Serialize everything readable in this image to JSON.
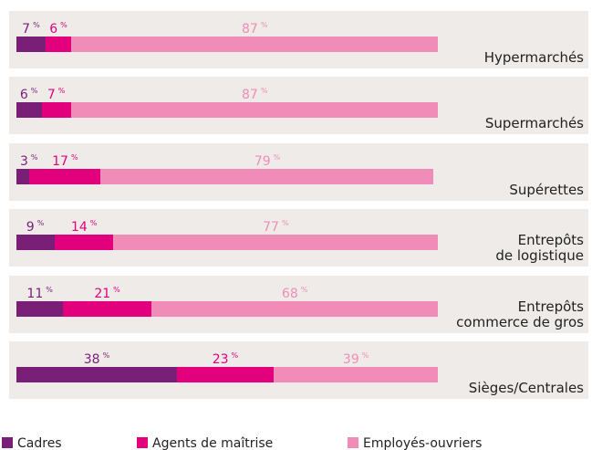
{
  "chart_data": {
    "type": "stacked-bar-horizontal",
    "categories": [
      "Hypermarchés",
      "Supermarchés",
      "Supérettes",
      "Entrepôts\nde logistique",
      "Entrepôts\ncommerce de gros",
      "Sièges/Centrales"
    ],
    "series": [
      {
        "name": "Cadres",
        "color": "#7a1f78",
        "values": [
          7,
          6,
          3,
          9,
          11,
          38
        ]
      },
      {
        "name": "Agents de maîtrise",
        "color": "#e3007d",
        "values": [
          6,
          7,
          17,
          14,
          21,
          23
        ]
      },
      {
        "name": "Employés-ouvriers",
        "color": "#f18cb9",
        "values": [
          87,
          87,
          79,
          77,
          68,
          39
        ]
      }
    ],
    "value_suffix": "%",
    "xlim": [
      0,
      100
    ]
  }
}
